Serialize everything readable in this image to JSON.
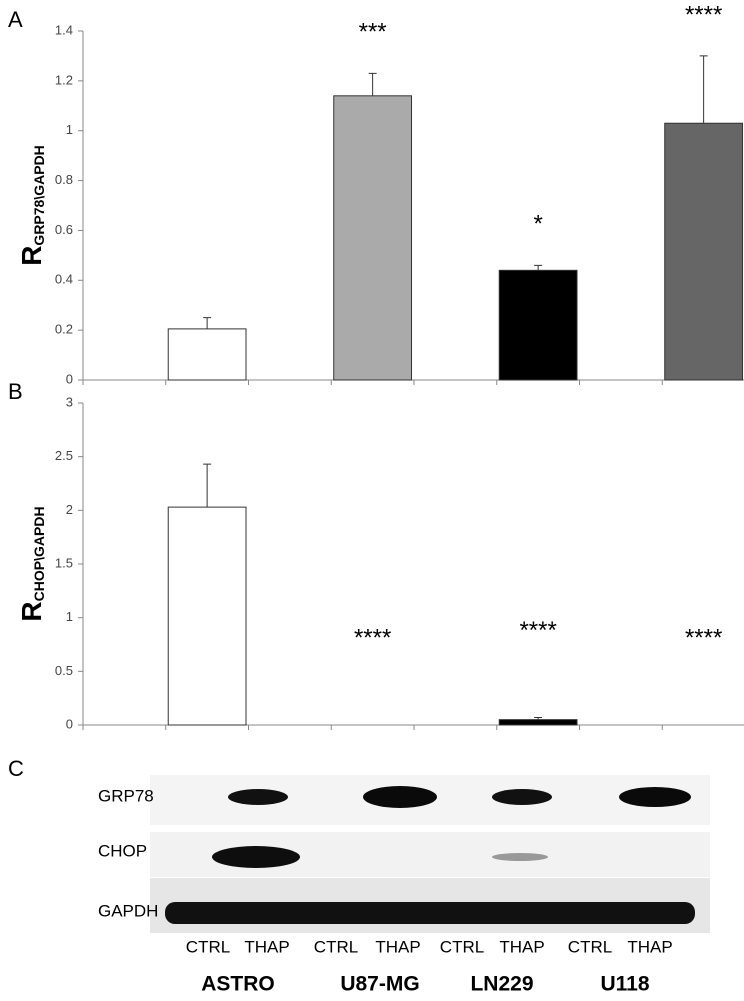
{
  "chart_data": [
    {
      "type": "bar",
      "panel": "A",
      "ylabel": "R",
      "ylabel_sub": "GRP78\\GAPDH",
      "categories": [
        null,
        null,
        null,
        null
      ],
      "values": [
        0.205,
        1.14,
        0.44,
        1.03
      ],
      "errors": [
        0.045,
        0.09,
        0.02,
        0.27
      ],
      "annotations": [
        null,
        "***",
        "*",
        "****"
      ],
      "colors": [
        "#ffffff",
        "#aaaaaa",
        "#000000",
        "#666666"
      ],
      "ylim": [
        0,
        1.4
      ],
      "yticks": [
        0,
        0.2,
        0.4,
        0.6,
        0.8,
        1,
        1.2,
        1.4
      ]
    },
    {
      "type": "bar",
      "panel": "B",
      "ylabel": "R",
      "ylabel_sub": "CHOP\\GAPDH",
      "categories": [
        null,
        null,
        null,
        null
      ],
      "values": [
        2.03,
        0,
        0.05,
        0
      ],
      "errors": [
        0.4,
        null,
        0.02,
        null
      ],
      "annotations": [
        null,
        "****",
        "****",
        "****"
      ],
      "colors": [
        "#ffffff",
        "#aaaaaa",
        "#000000",
        "#666666"
      ],
      "ylim": [
        0,
        3
      ],
      "yticks": [
        0,
        0.5,
        1,
        1.5,
        2,
        2.5,
        3
      ]
    }
  ],
  "blot": {
    "panel": "C",
    "rows": [
      "GRP78",
      "CHOP",
      "GAPDH"
    ],
    "lanes": [
      "CTRL",
      "THAP",
      "CTRL",
      "THAP",
      "CTRL",
      "THAP",
      "CTRL",
      "THAP"
    ],
    "cell_lines": [
      "ASTRO",
      "U87-MG",
      "LN229",
      "U118"
    ]
  }
}
